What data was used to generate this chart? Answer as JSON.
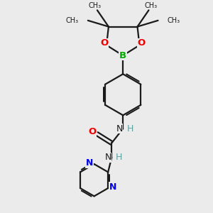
{
  "bg_color": "#ebebeb",
  "bond_color": "#1a1a1a",
  "N_color": "#0000ee",
  "O_color": "#ee0000",
  "B_color": "#00aa00",
  "H_color": "#5ba3a3",
  "bond_width": 1.6,
  "figsize": [
    3.0,
    3.0
  ],
  "dpi": 100,
  "xlim": [
    0,
    10
  ],
  "ylim": [
    0,
    10
  ]
}
